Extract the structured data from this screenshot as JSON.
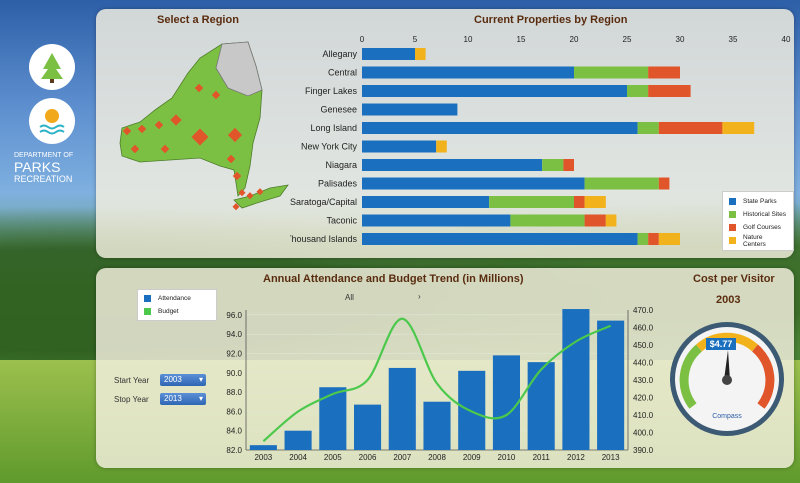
{
  "logo": {
    "dept": "DEPARTMENT OF",
    "parks": "PARKS",
    "rec": "RECREATION"
  },
  "map": {
    "title": "Select a Region"
  },
  "properties": {
    "title": "Current Properties by Region",
    "xticks": [
      "0",
      "5",
      "10",
      "15",
      "20",
      "25",
      "30",
      "35",
      "40"
    ],
    "legend": [
      "State Parks",
      "Historical Sites",
      "Golf Courses",
      "Nature Centers"
    ],
    "colors": [
      "#1a6fbf",
      "#7cc043",
      "#e0552a",
      "#f2b21b"
    ]
  },
  "trend": {
    "title": "Annual Attendance and Budget Trend (in Millions)",
    "legend": [
      "Attendance",
      "Budget"
    ],
    "filter": "All",
    "start_label": "Start Year",
    "start_value": "2003",
    "stop_label": "Stop Year",
    "stop_value": "2013",
    "yleft": [
      "82.0",
      "84.0",
      "86.0",
      "88.0",
      "90.0",
      "92.0",
      "94.0",
      "96.0"
    ],
    "yright": [
      "390.0",
      "400.0",
      "410.0",
      "420.0",
      "430.0",
      "440.0",
      "450.0",
      "460.0",
      "470.0"
    ]
  },
  "cost": {
    "title": "Cost per Visitor",
    "year": "2003",
    "value": "$4.77",
    "brand": "Compass"
  },
  "chart_data": [
    {
      "type": "bar",
      "stacked": true,
      "orientation": "horizontal",
      "title": "Current Properties by Region",
      "categories": [
        "Allegany",
        "Central",
        "Finger Lakes",
        "Genesee",
        "Long Island",
        "New York City",
        "Niagara",
        "Palisades",
        "Saratoga/Capital",
        "Taconic",
        "Thousand Islands"
      ],
      "series": [
        {
          "name": "State Parks",
          "values": [
            5,
            20,
            25,
            9,
            26,
            7,
            17,
            21,
            12,
            14,
            26
          ]
        },
        {
          "name": "Historical Sites",
          "values": [
            0,
            7,
            2,
            0,
            2,
            0,
            2,
            7,
            8,
            7,
            1
          ]
        },
        {
          "name": "Golf Courses",
          "values": [
            0,
            3,
            4,
            0,
            6,
            0,
            1,
            1,
            1,
            2,
            1
          ]
        },
        {
          "name": "Nature Centers",
          "values": [
            1,
            0,
            0,
            0,
            3,
            1,
            0,
            0,
            2,
            1,
            2
          ]
        }
      ],
      "xlim": [
        0,
        40
      ]
    },
    {
      "type": "bar",
      "title": "Annual Attendance and Budget Trend (in Millions)",
      "categories": [
        "2003",
        "2004",
        "2005",
        "2006",
        "2007",
        "2008",
        "2009",
        "2010",
        "2011",
        "2012",
        "2013"
      ],
      "series": [
        {
          "name": "Attendance",
          "type": "bar",
          "axis": "left",
          "values": [
            82.5,
            84.0,
            88.5,
            86.7,
            90.5,
            87.0,
            90.2,
            91.8,
            91.1,
            96.6,
            95.4
          ]
        },
        {
          "name": "Budget",
          "type": "line",
          "axis": "right",
          "values": [
            395,
            412,
            422,
            430,
            465,
            428,
            412,
            410,
            436,
            452,
            461
          ]
        }
      ],
      "ylim_left": [
        82,
        96.5
      ],
      "ylim_right": [
        390,
        470
      ]
    }
  ]
}
